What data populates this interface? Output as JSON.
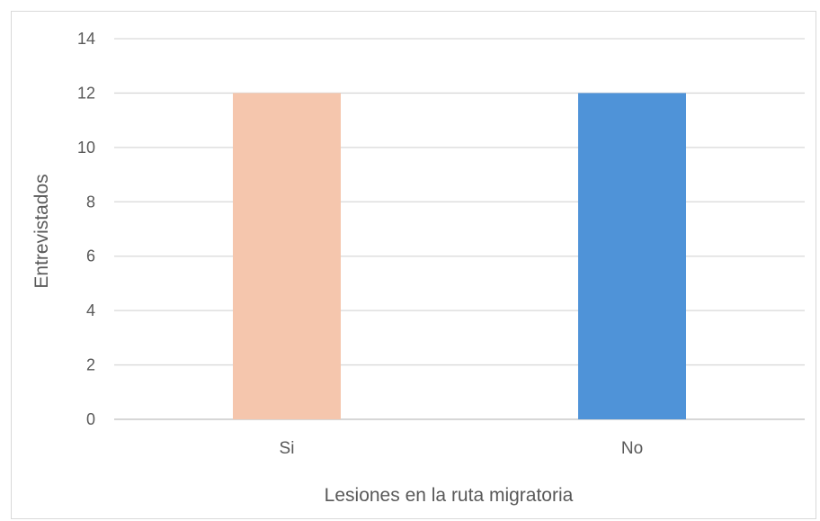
{
  "chart_data": {
    "type": "bar",
    "title": "",
    "categories": [
      "Si",
      "No"
    ],
    "values": [
      12,
      12
    ],
    "bar_colors": [
      "#f5c6ad",
      "#4f93d8"
    ],
    "xlabel": "Lesiones en la ruta migratoria",
    "ylabel": "Entrevistados",
    "ylim": [
      0,
      14
    ],
    "yticks": [
      "0",
      "2",
      "4",
      "6",
      "8",
      "10",
      "12",
      "14"
    ],
    "grid": true,
    "legend": "none"
  }
}
